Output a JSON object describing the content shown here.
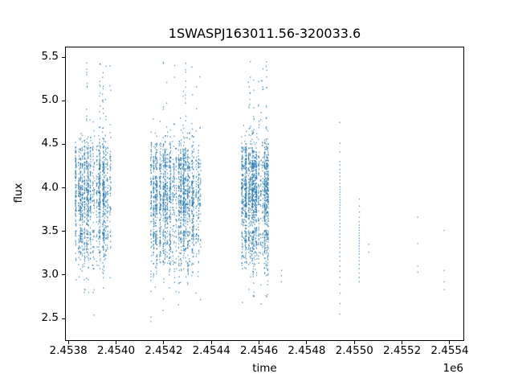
{
  "figure": {
    "kind": "matplotlib-light-curve"
  },
  "chart_data": {
    "type": "scatter",
    "title": "1SWASPJ163011.56-320033.6",
    "xlabel": "time",
    "ylabel": "flux",
    "x_offset_label": "1e6",
    "xlim": [
      2453786,
      2455454
    ],
    "ylim": [
      2.26,
      5.62
    ],
    "grid": false,
    "legend": null,
    "xticks": {
      "values": [
        2453800,
        2454000,
        2454200,
        2454400,
        2454600,
        2454800,
        2455000,
        2455200,
        2455400
      ],
      "labels": [
        "2.4538",
        "2.4540",
        "2.4542",
        "2.4544",
        "2.4546",
        "2.4548",
        "2.4550",
        "2.4552",
        "2.4554"
      ]
    },
    "yticks": {
      "values": [
        2.5,
        3.0,
        3.5,
        4.0,
        4.5,
        5.0,
        5.5
      ],
      "labels": [
        "2.5",
        "3.0",
        "3.5",
        "4.0",
        "4.5",
        "5.0",
        "5.5"
      ]
    },
    "colors": {
      "marker": "#1f77b4",
      "axes": "#000000",
      "background": "#ffffff"
    },
    "marker": {
      "color": "#1f77b4",
      "opacity": 0.6,
      "w": 1.3,
      "h": 1.7
    },
    "flux_range": [
      2.43,
      5.47
    ],
    "clusters": [
      {
        "name": "season-1",
        "t_min": 2453826,
        "t_max": 2453976,
        "n": 1500,
        "columns": 18,
        "seed": 101
      },
      {
        "name": "season-2",
        "t_min": 2454142,
        "t_max": 2454352,
        "n": 1950,
        "columns": 26,
        "seed": 202
      },
      {
        "name": "season-3",
        "t_min": 2454519,
        "t_max": 2454636,
        "n": 1650,
        "columns": 16,
        "seed": 303
      }
    ],
    "sparse_columns": [
      {
        "t": 2454691,
        "flux": [
          3.06,
          3.0,
          2.93
        ]
      },
      {
        "t": 2454936,
        "flux": [
          4.76,
          4.52,
          4.42,
          4.31,
          4.27,
          4.22,
          4.18,
          4.14,
          4.1,
          4.06,
          4.02,
          3.99,
          3.96,
          3.93,
          3.9,
          3.87,
          3.84,
          3.81,
          3.78,
          3.75,
          3.72,
          3.68,
          3.64,
          3.6,
          3.56,
          3.52,
          3.48,
          3.44,
          3.4,
          3.36,
          3.32,
          3.27,
          3.22,
          3.17,
          3.11,
          3.05,
          2.98,
          2.9,
          2.8,
          2.68,
          2.56
        ]
      },
      {
        "t": 2455017,
        "flux": [
          3.88,
          3.8,
          3.73,
          3.67,
          3.62,
          3.58,
          3.55,
          3.52,
          3.49,
          3.46,
          3.43,
          3.4,
          3.37,
          3.34,
          3.31,
          3.28,
          3.25,
          3.21,
          3.17,
          3.13,
          3.08,
          3.03,
          2.98,
          2.93
        ]
      },
      {
        "t": 2455057,
        "flux": [
          3.36,
          3.27
        ]
      },
      {
        "t": 2455262,
        "flux": [
          3.67,
          3.37,
          3.11,
          3.04
        ]
      },
      {
        "t": 2455373,
        "flux": [
          3.52,
          3.06,
          2.93,
          2.84
        ]
      }
    ]
  }
}
